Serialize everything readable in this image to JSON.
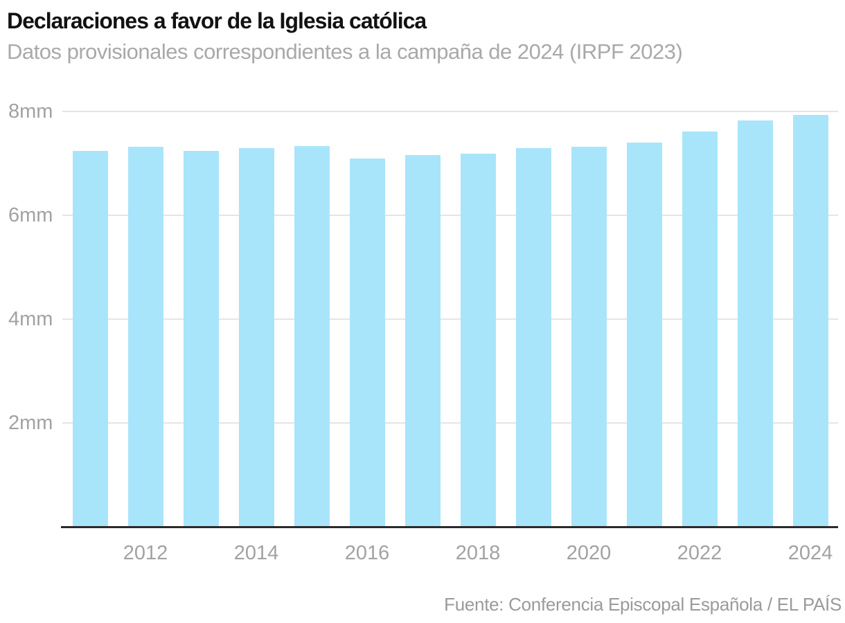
{
  "header": {
    "title": "Declaraciones a favor de la Iglesia católica",
    "subtitle": "Datos provisionales correspondientes a la campaña de 2024 (IRPF 2023)"
  },
  "footer": {
    "source": "Fuente: Conferencia Episcopal Española / EL PAÍS"
  },
  "colors": {
    "bar": "#a8e5fb",
    "gridline": "#e5e5e5",
    "axis_line": "#2b2b2b",
    "title": "#121212",
    "subtitle": "#a9a9a9",
    "tick_label": "#a2a2a2",
    "source": "#9a9a9a",
    "background": "#ffffff"
  },
  "chart_data": {
    "type": "bar",
    "title": "Declaraciones a favor de la Iglesia católica",
    "subtitle": "Datos provisionales correspondientes a la campaña de 2024 (IRPF 2023)",
    "source": "Fuente: Conferencia Episcopal Española / EL PAÍS",
    "unit": "millones de declaraciones (mm)",
    "categories": [
      2011,
      2012,
      2013,
      2014,
      2015,
      2016,
      2017,
      2018,
      2019,
      2020,
      2021,
      2022,
      2023,
      2024
    ],
    "values": [
      7.24,
      7.32,
      7.24,
      7.29,
      7.34,
      7.09,
      7.16,
      7.19,
      7.29,
      7.32,
      7.4,
      7.62,
      7.83,
      7.93
    ],
    "ylim": [
      0,
      8
    ],
    "yticks": [
      {
        "value": 2,
        "label": "2mm"
      },
      {
        "value": 4,
        "label": "4mm"
      },
      {
        "value": 6,
        "label": "6mm"
      },
      {
        "value": 8,
        "label": "8mm"
      }
    ],
    "xticks": [
      2012,
      2014,
      2016,
      2018,
      2020,
      2022,
      2024
    ],
    "grid": "horizontal",
    "legend": "none",
    "bar_color": "#a8e5fb"
  }
}
